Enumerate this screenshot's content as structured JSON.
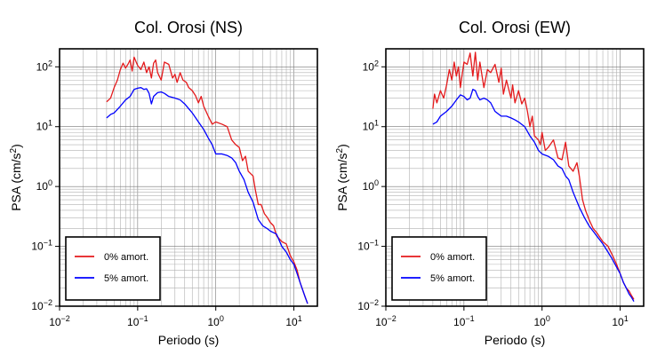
{
  "chart_data": [
    {
      "type": "line",
      "title": "Col. Orosi (NS)",
      "xlabel": "Periodo (s)",
      "ylabel": "PSA (cm/s²)",
      "xscale": "log",
      "yscale": "log",
      "xlim": [
        0.01,
        20
      ],
      "ylim": [
        0.01,
        200
      ],
      "x_ticks": [
        "10−2",
        "10−1",
        "100",
        "101"
      ],
      "y_ticks": [
        "10−2",
        "10−1",
        "100",
        "101",
        "102"
      ],
      "grid": true,
      "legend_position": "bottom-left",
      "series": [
        {
          "name": "0% amort.",
          "color": "#e41a1c",
          "points": [
            [
              0.04,
              26
            ],
            [
              0.045,
              30
            ],
            [
              0.05,
              45
            ],
            [
              0.055,
              60
            ],
            [
              0.06,
              90
            ],
            [
              0.065,
              115
            ],
            [
              0.07,
              95
            ],
            [
              0.075,
              110
            ],
            [
              0.08,
              130
            ],
            [
              0.085,
              85
            ],
            [
              0.09,
              145
            ],
            [
              0.1,
              105
            ],
            [
              0.11,
              90
            ],
            [
              0.12,
              120
            ],
            [
              0.13,
              80
            ],
            [
              0.14,
              100
            ],
            [
              0.15,
              65
            ],
            [
              0.16,
              115
            ],
            [
              0.17,
              130
            ],
            [
              0.18,
              80
            ],
            [
              0.2,
              60
            ],
            [
              0.22,
              120
            ],
            [
              0.25,
              110
            ],
            [
              0.28,
              65
            ],
            [
              0.3,
              75
            ],
            [
              0.32,
              55
            ],
            [
              0.35,
              80
            ],
            [
              0.38,
              60
            ],
            [
              0.42,
              55
            ],
            [
              0.45,
              45
            ],
            [
              0.5,
              40
            ],
            [
              0.55,
              33
            ],
            [
              0.6,
              25
            ],
            [
              0.65,
              32
            ],
            [
              0.7,
              22
            ],
            [
              0.8,
              15
            ],
            [
              0.9,
              11
            ],
            [
              1.0,
              12
            ],
            [
              1.2,
              11
            ],
            [
              1.4,
              10
            ],
            [
              1.6,
              6
            ],
            [
              1.8,
              5
            ],
            [
              2.0,
              4.5
            ],
            [
              2.2,
              2.7
            ],
            [
              2.4,
              3.2
            ],
            [
              2.6,
              1.8
            ],
            [
              3.0,
              1.5
            ],
            [
              3.2,
              0.9
            ],
            [
              3.5,
              0.5
            ],
            [
              3.8,
              0.5
            ],
            [
              4.2,
              0.35
            ],
            [
              4.6,
              0.3
            ],
            [
              5.0,
              0.25
            ],
            [
              5.5,
              0.22
            ],
            [
              6.0,
              0.15
            ],
            [
              7.0,
              0.12
            ],
            [
              8.0,
              0.11
            ],
            [
              9.0,
              0.07
            ],
            [
              10.0,
              0.055
            ],
            [
              11.0,
              0.04
            ],
            [
              12.0,
              0.025
            ],
            [
              14.0,
              0.014
            ],
            [
              15.0,
              0.011
            ]
          ]
        },
        {
          "name": "5% amort.",
          "color": "#0000ff",
          "points": [
            [
              0.04,
              14
            ],
            [
              0.045,
              16
            ],
            [
              0.05,
              17
            ],
            [
              0.06,
              22
            ],
            [
              0.07,
              28
            ],
            [
              0.08,
              32
            ],
            [
              0.09,
              42
            ],
            [
              0.1,
              44
            ],
            [
              0.11,
              45
            ],
            [
              0.12,
              42
            ],
            [
              0.13,
              43
            ],
            [
              0.14,
              36
            ],
            [
              0.15,
              24
            ],
            [
              0.16,
              32
            ],
            [
              0.18,
              37
            ],
            [
              0.2,
              38
            ],
            [
              0.22,
              36
            ],
            [
              0.25,
              32
            ],
            [
              0.3,
              30
            ],
            [
              0.35,
              28
            ],
            [
              0.4,
              24
            ],
            [
              0.45,
              20
            ],
            [
              0.5,
              17
            ],
            [
              0.6,
              12
            ],
            [
              0.7,
              9
            ],
            [
              0.8,
              6.5
            ],
            [
              0.9,
              5
            ],
            [
              1.0,
              3.5
            ],
            [
              1.2,
              3.5
            ],
            [
              1.4,
              3.3
            ],
            [
              1.6,
              3
            ],
            [
              1.8,
              2.5
            ],
            [
              2.0,
              1.8
            ],
            [
              2.3,
              1.3
            ],
            [
              2.6,
              0.8
            ],
            [
              3.0,
              0.55
            ],
            [
              3.5,
              0.28
            ],
            [
              4.0,
              0.22
            ],
            [
              4.5,
              0.2
            ],
            [
              5.0,
              0.18
            ],
            [
              6.0,
              0.16
            ],
            [
              7.0,
              0.1
            ],
            [
              8.0,
              0.08
            ],
            [
              9.0,
              0.06
            ],
            [
              10.0,
              0.05
            ],
            [
              11.0,
              0.035
            ],
            [
              12.0,
              0.025
            ],
            [
              14.0,
              0.014
            ],
            [
              15.0,
              0.011
            ]
          ]
        }
      ]
    },
    {
      "type": "line",
      "title": "Col. Orosi (EW)",
      "xlabel": "Periodo (s)",
      "ylabel": "PSA (cm/s²)",
      "xscale": "log",
      "yscale": "log",
      "xlim": [
        0.01,
        20
      ],
      "ylim": [
        0.01,
        200
      ],
      "x_ticks": [
        "10−2",
        "10−1",
        "100",
        "101"
      ],
      "y_ticks": [
        "10−2",
        "10−1",
        "100",
        "101",
        "102"
      ],
      "grid": true,
      "legend_position": "bottom-left",
      "series": [
        {
          "name": "0% amort.",
          "color": "#e41a1c",
          "points": [
            [
              0.04,
              20
            ],
            [
              0.042,
              35
            ],
            [
              0.045,
              25
            ],
            [
              0.05,
              40
            ],
            [
              0.055,
              30
            ],
            [
              0.06,
              50
            ],
            [
              0.065,
              90
            ],
            [
              0.07,
              60
            ],
            [
              0.075,
              120
            ],
            [
              0.08,
              70
            ],
            [
              0.085,
              100
            ],
            [
              0.09,
              45
            ],
            [
              0.1,
              120
            ],
            [
              0.11,
              110
            ],
            [
              0.12,
              170
            ],
            [
              0.13,
              70
            ],
            [
              0.14,
              175
            ],
            [
              0.15,
              60
            ],
            [
              0.16,
              120
            ],
            [
              0.18,
              45
            ],
            [
              0.2,
              90
            ],
            [
              0.22,
              80
            ],
            [
              0.25,
              110
            ],
            [
              0.28,
              55
            ],
            [
              0.3,
              95
            ],
            [
              0.32,
              35
            ],
            [
              0.35,
              60
            ],
            [
              0.4,
              30
            ],
            [
              0.42,
              50
            ],
            [
              0.45,
              25
            ],
            [
              0.5,
              40
            ],
            [
              0.55,
              24
            ],
            [
              0.6,
              30
            ],
            [
              0.65,
              18
            ],
            [
              0.7,
              10
            ],
            [
              0.75,
              15
            ],
            [
              0.8,
              7
            ],
            [
              0.9,
              6
            ],
            [
              0.95,
              5
            ],
            [
              1.0,
              8
            ],
            [
              1.1,
              4
            ],
            [
              1.2,
              4.5
            ],
            [
              1.4,
              6
            ],
            [
              1.6,
              3
            ],
            [
              1.8,
              2.8
            ],
            [
              2.0,
              5.5
            ],
            [
              2.2,
              2.2
            ],
            [
              2.5,
              1.8
            ],
            [
              2.8,
              2.5
            ],
            [
              3.0,
              1.5
            ],
            [
              3.3,
              0.6
            ],
            [
              3.6,
              0.4
            ],
            [
              4.0,
              0.28
            ],
            [
              4.5,
              0.2
            ],
            [
              5.0,
              0.17
            ],
            [
              6.0,
              0.12
            ],
            [
              7.0,
              0.1
            ],
            [
              8.0,
              0.07
            ],
            [
              9.0,
              0.05
            ],
            [
              10.0,
              0.035
            ],
            [
              11.0,
              0.025
            ],
            [
              12.0,
              0.02
            ],
            [
              13.0,
              0.018
            ],
            [
              14.0,
              0.015
            ],
            [
              15.0,
              0.013
            ]
          ]
        },
        {
          "name": "5% amort.",
          "color": "#0000ff",
          "points": [
            [
              0.04,
              11
            ],
            [
              0.045,
              12
            ],
            [
              0.05,
              15
            ],
            [
              0.06,
              18
            ],
            [
              0.07,
              22
            ],
            [
              0.08,
              28
            ],
            [
              0.09,
              34
            ],
            [
              0.1,
              32
            ],
            [
              0.11,
              28
            ],
            [
              0.12,
              30
            ],
            [
              0.13,
              42
            ],
            [
              0.14,
              40
            ],
            [
              0.15,
              32
            ],
            [
              0.16,
              28
            ],
            [
              0.18,
              30
            ],
            [
              0.2,
              28
            ],
            [
              0.22,
              25
            ],
            [
              0.25,
              18
            ],
            [
              0.3,
              15
            ],
            [
              0.35,
              15
            ],
            [
              0.4,
              14
            ],
            [
              0.45,
              13
            ],
            [
              0.5,
              12
            ],
            [
              0.6,
              10
            ],
            [
              0.7,
              7
            ],
            [
              0.8,
              5.5
            ],
            [
              0.9,
              4
            ],
            [
              1.0,
              3.5
            ],
            [
              1.2,
              3.2
            ],
            [
              1.4,
              2.8
            ],
            [
              1.6,
              2.2
            ],
            [
              1.8,
              2
            ],
            [
              2.0,
              1.5
            ],
            [
              2.2,
              1.3
            ],
            [
              2.5,
              0.8
            ],
            [
              3.0,
              0.45
            ],
            [
              3.5,
              0.3
            ],
            [
              4.0,
              0.22
            ],
            [
              4.5,
              0.18
            ],
            [
              5.0,
              0.15
            ],
            [
              6.0,
              0.11
            ],
            [
              7.0,
              0.08
            ],
            [
              8.0,
              0.06
            ],
            [
              9.0,
              0.045
            ],
            [
              10.0,
              0.035
            ],
            [
              11.0,
              0.025
            ],
            [
              12.0,
              0.02
            ],
            [
              13.0,
              0.016
            ],
            [
              14.0,
              0.014
            ],
            [
              15.0,
              0.012
            ]
          ]
        }
      ]
    }
  ]
}
